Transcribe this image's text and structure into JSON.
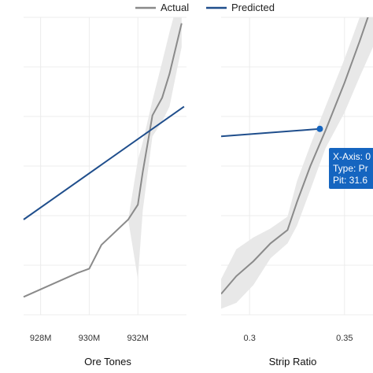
{
  "legend": {
    "placement": "top-center",
    "entries": [
      {
        "name": "Actual",
        "color": "#8a8a8a"
      },
      {
        "name": "Predicted",
        "color": "#1f4e8c"
      }
    ]
  },
  "colors": {
    "band": "#e8e8e8",
    "grid": "#ececec",
    "tooltip": "#1565c0"
  },
  "chart_data": [
    {
      "type": "line",
      "xlabel": "Ore Tones",
      "xlim": [
        927.3,
        934.0
      ],
      "ylim": [
        0,
        1
      ],
      "xticks": [
        {
          "value": 928,
          "label": "928M"
        },
        {
          "value": 930,
          "label": "930M"
        },
        {
          "value": 932,
          "label": "932M"
        }
      ],
      "grid": true,
      "series": [
        {
          "name": "Actual",
          "x": [
            927.3,
            929.5,
            930.0,
            930.5,
            931.6,
            932.0,
            932.2,
            932.6,
            933.0,
            933.3,
            933.8
          ],
          "y": [
            0.06,
            0.14,
            0.155,
            0.235,
            0.32,
            0.37,
            0.48,
            0.67,
            0.73,
            0.81,
            0.98
          ]
        },
        {
          "name": "Predicted",
          "x": [
            927.3,
            933.9
          ],
          "y": [
            0.32,
            0.7
          ]
        }
      ],
      "band": {
        "x": [
          931.6,
          932.0,
          932.2,
          932.6,
          933.0,
          933.3,
          933.8
        ],
        "lower": [
          0.32,
          0.12,
          0.35,
          0.6,
          0.65,
          0.7,
          0.9
        ],
        "upper": [
          0.32,
          0.52,
          0.58,
          0.72,
          0.85,
          0.95,
          1.1
        ]
      }
    },
    {
      "type": "line",
      "xlabel": "Strip Ratio",
      "xlim": [
        0.285,
        0.365
      ],
      "ylim": [
        0,
        1
      ],
      "xticks": [
        {
          "value": 0.3,
          "label": "0.3"
        },
        {
          "value": 0.35,
          "label": "0.35"
        }
      ],
      "grid": true,
      "series": [
        {
          "name": "Actual",
          "x": [
            0.285,
            0.293,
            0.302,
            0.311,
            0.32,
            0.325,
            0.332,
            0.34,
            0.35,
            0.358,
            0.365
          ],
          "y": [
            0.07,
            0.13,
            0.18,
            0.24,
            0.285,
            0.38,
            0.5,
            0.62,
            0.78,
            0.92,
            1.05
          ]
        },
        {
          "name": "Predicted",
          "x": [
            0.285,
            0.337
          ],
          "y": [
            0.6,
            0.625
          ]
        }
      ],
      "band": {
        "x": [
          0.285,
          0.293,
          0.302,
          0.311,
          0.32,
          0.325,
          0.332,
          0.34,
          0.35,
          0.358,
          0.365
        ],
        "lower": [
          0.02,
          0.04,
          0.1,
          0.19,
          0.24,
          0.3,
          0.42,
          0.56,
          0.68,
          0.8,
          0.9
        ],
        "upper": [
          0.12,
          0.22,
          0.26,
          0.29,
          0.33,
          0.45,
          0.57,
          0.7,
          0.86,
          1.0,
          1.15
        ]
      },
      "tooltip": {
        "lines": [
          "X-Axis: 0",
          "Type: Pr",
          "Pit: 31.6"
        ]
      }
    }
  ]
}
